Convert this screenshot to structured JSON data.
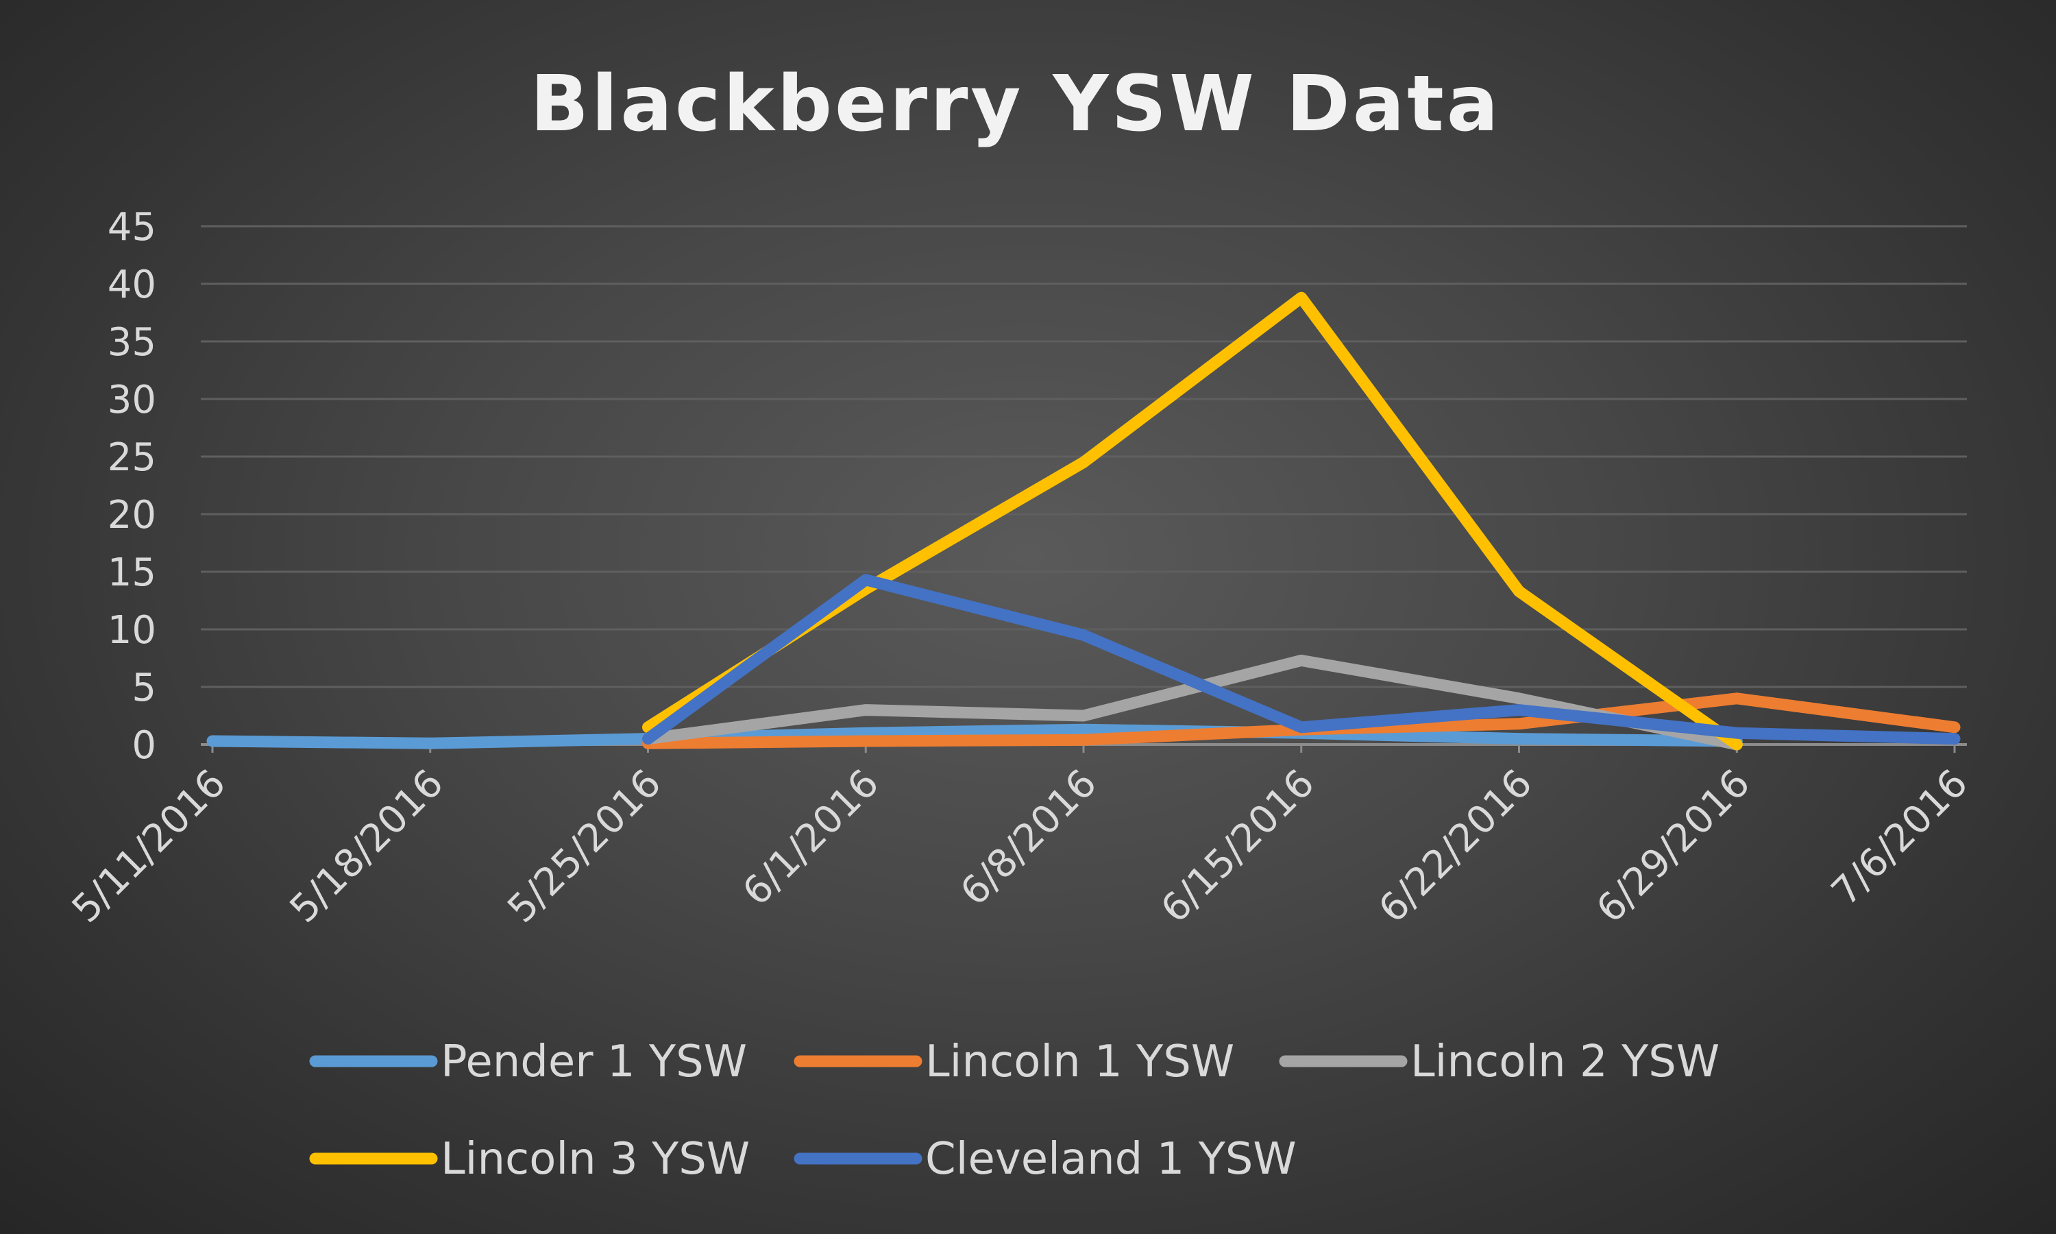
{
  "chart_data": {
    "type": "line",
    "title": "Blackberry YSW Data",
    "xlabel": "",
    "ylabel": "",
    "categories": [
      "5/11/2016",
      "5/18/2016",
      "5/25/2016",
      "6/1/2016",
      "6/8/2016",
      "6/15/2016",
      "6/22/2016",
      "6/29/2016",
      "7/6/2016"
    ],
    "yticks": [
      0,
      5,
      10,
      15,
      20,
      25,
      30,
      35,
      40,
      45
    ],
    "ylim": [
      0,
      45
    ],
    "grid": true,
    "legend_position": "bottom",
    "series": [
      {
        "name": "Pender 1 YSW",
        "color": "#5b9bd5",
        "values": [
          0.3,
          0.1,
          0.5,
          1.0,
          1.3,
          1.0,
          0.5,
          0.3,
          null
        ]
      },
      {
        "name": "Lincoln 1 YSW",
        "color": "#ed7d31",
        "values": [
          null,
          null,
          0.1,
          0.3,
          0.4,
          1.3,
          1.8,
          4.0,
          1.5
        ]
      },
      {
        "name": "Lincoln 2 YSW",
        "color": "#a5a5a5",
        "values": [
          null,
          null,
          0.5,
          3.0,
          2.5,
          7.3,
          4.0,
          0.0,
          null
        ]
      },
      {
        "name": "Lincoln 3 YSW",
        "color": "#ffc000",
        "values": [
          null,
          null,
          1.5,
          13.5,
          24.5,
          38.8,
          13.3,
          0.0,
          null
        ]
      },
      {
        "name": "Cleveland 1 YSW",
        "color": "#4472c4",
        "values": [
          null,
          null,
          0.5,
          14.3,
          9.5,
          1.5,
          3.0,
          1.0,
          0.5
        ]
      }
    ]
  }
}
